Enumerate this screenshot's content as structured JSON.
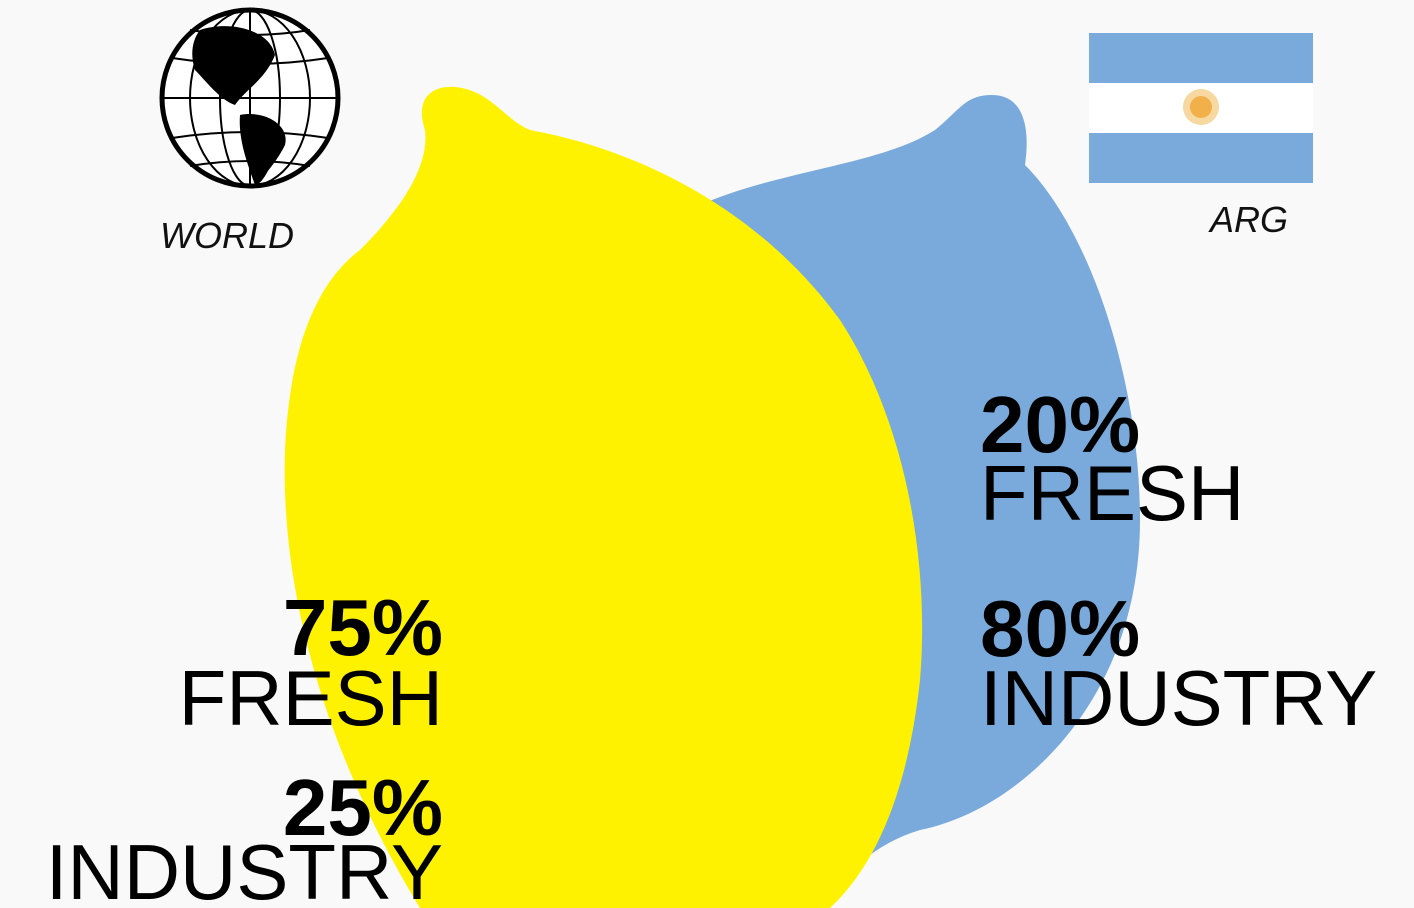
{
  "world": {
    "label": "WORLD",
    "items": [
      {
        "percent": "75%",
        "label": "FRESH"
      },
      {
        "percent": "25%",
        "label": "INDUSTRY"
      }
    ]
  },
  "arg": {
    "label": "ARG",
    "items": [
      {
        "percent": "20%",
        "label": "FRESH"
      },
      {
        "percent": "80%",
        "label": "INDUSTRY"
      }
    ]
  }
}
